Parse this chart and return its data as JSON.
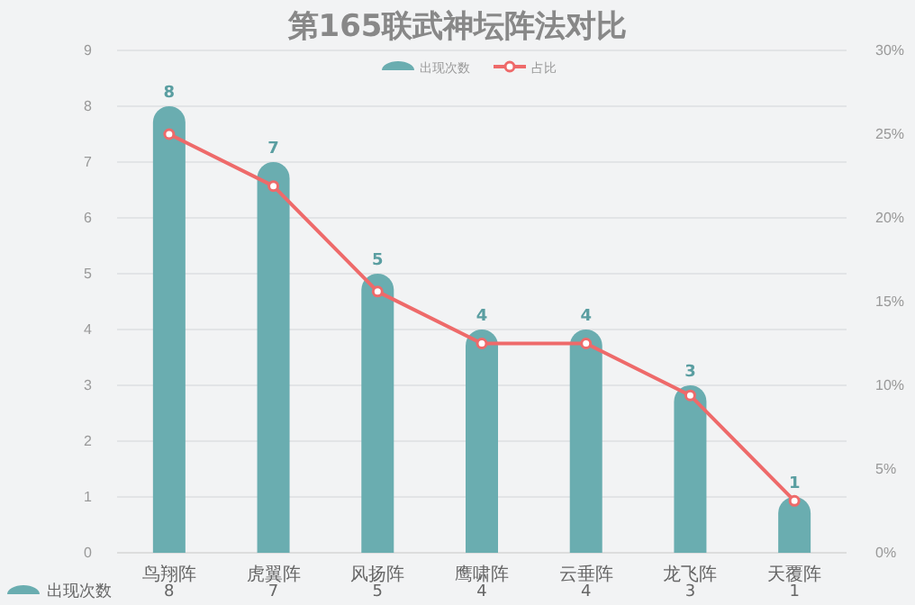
{
  "chart_data": {
    "type": "bar",
    "title": "第165联武神坛阵法对比",
    "categories": [
      "鸟翔阵",
      "虎翼阵",
      "风扬阵",
      "鹰啸阵",
      "云垂阵",
      "龙飞阵",
      "天覆阵"
    ],
    "series": [
      {
        "name": "出现次数",
        "color": "#6aadb0",
        "values": [
          8,
          7,
          5,
          4,
          4,
          3,
          1
        ],
        "value_labels": [
          "8",
          "7",
          "5",
          "4",
          "4",
          "3",
          "1"
        ]
      },
      {
        "name": "占比",
        "type": "line",
        "axis": "y2",
        "color": "#ee6a6a",
        "values": [
          25,
          21.9,
          15.6,
          12.5,
          12.5,
          9.4,
          3.1
        ]
      }
    ],
    "ylim": [
      0,
      9
    ],
    "yticks": [
      0,
      1,
      2,
      3,
      4,
      5,
      6,
      7,
      8,
      9
    ],
    "y2lim": [
      0,
      30
    ],
    "y2ticks": [
      {
        "value": 0,
        "label": "0%"
      },
      {
        "value": 5,
        "label": "5%"
      },
      {
        "value": 10,
        "label": "10%"
      },
      {
        "value": 15,
        "label": "15%"
      },
      {
        "value": 20,
        "label": "20%"
      },
      {
        "value": 25,
        "label": "25%"
      },
      {
        "value": 30,
        "label": "30%"
      }
    ],
    "grid": "y",
    "legend": "top",
    "marker": "circle",
    "line_style": "solid"
  }
}
